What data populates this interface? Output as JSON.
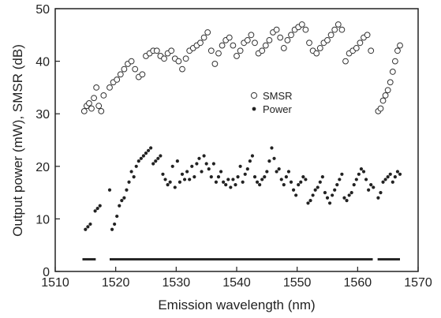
{
  "chart_data": {
    "type": "scatter",
    "xlabel": "Emission wavelength (nm)",
    "ylabel": "Output power (mW), SMSR (dB)",
    "xlim": [
      1510,
      1570
    ],
    "ylim": [
      0,
      50
    ],
    "xticks": [
      1510,
      1520,
      1530,
      1540,
      1550,
      1560,
      1570
    ],
    "yticks": [
      0,
      10,
      20,
      30,
      40,
      50
    ],
    "grid": false,
    "legend_position": "center-right",
    "series": [
      {
        "name": "SMSR",
        "marker": "open-circle",
        "x": [
          1514.8,
          1515.2,
          1515.6,
          1516.0,
          1516.4,
          1516.8,
          1517.2,
          1517.6,
          1518.0,
          1519.0,
          1519.6,
          1520.2,
          1520.8,
          1521.4,
          1522.0,
          1522.6,
          1523.2,
          1523.8,
          1524.4,
          1525.0,
          1525.6,
          1526.2,
          1526.8,
          1527.4,
          1528.0,
          1528.6,
          1529.2,
          1529.8,
          1530.4,
          1531.0,
          1531.6,
          1532.2,
          1532.8,
          1533.4,
          1534.0,
          1534.6,
          1535.2,
          1535.8,
          1536.4,
          1537.0,
          1537.6,
          1538.2,
          1538.8,
          1539.4,
          1540.0,
          1540.6,
          1541.2,
          1541.8,
          1542.4,
          1543.0,
          1543.6,
          1544.2,
          1544.8,
          1545.4,
          1546.0,
          1546.6,
          1547.2,
          1547.8,
          1548.4,
          1549.0,
          1549.6,
          1550.2,
          1550.8,
          1551.4,
          1552.0,
          1552.6,
          1553.2,
          1553.8,
          1554.4,
          1555.0,
          1555.6,
          1556.2,
          1556.8,
          1557.4,
          1558.0,
          1558.6,
          1559.2,
          1559.8,
          1560.4,
          1561.0,
          1561.6,
          1562.2,
          1563.4,
          1563.8,
          1564.2,
          1564.6,
          1565.0,
          1565.4,
          1565.8,
          1566.2,
          1566.6,
          1567.0
        ],
        "y": [
          30.5,
          31.5,
          32.0,
          31.0,
          33.0,
          35.0,
          31.5,
          30.5,
          33.5,
          35.0,
          36.0,
          36.5,
          37.5,
          38.5,
          39.5,
          40.0,
          38.5,
          37.0,
          37.5,
          41.0,
          41.5,
          42.0,
          42.0,
          41.0,
          40.5,
          41.5,
          42.0,
          40.5,
          40.0,
          38.5,
          40.5,
          42.0,
          42.5,
          43.0,
          43.5,
          44.5,
          45.5,
          42.0,
          39.5,
          41.5,
          43.0,
          44.0,
          44.5,
          43.0,
          41.0,
          42.0,
          43.5,
          44.0,
          45.0,
          43.5,
          41.5,
          42.0,
          43.0,
          44.0,
          45.5,
          46.0,
          44.5,
          42.5,
          44.0,
          45.0,
          46.0,
          46.5,
          47.0,
          46.0,
          43.5,
          42.0,
          41.5,
          42.5,
          43.5,
          44.0,
          45.0,
          46.0,
          47.0,
          46.0,
          40.0,
          41.5,
          42.0,
          42.5,
          43.5,
          44.5,
          45.0,
          42.0,
          30.5,
          31.0,
          32.5,
          33.5,
          34.5,
          36.0,
          38.0,
          40.0,
          42.0,
          43.0
        ]
      },
      {
        "name": "Power",
        "marker": "filled-dot",
        "x": [
          1515.0,
          1515.4,
          1515.8,
          1516.6,
          1517.0,
          1517.4,
          1519.0,
          1519.4,
          1519.8,
          1520.2,
          1520.6,
          1521.0,
          1521.4,
          1521.8,
          1522.2,
          1522.6,
          1523.0,
          1523.4,
          1523.8,
          1524.2,
          1524.6,
          1525.0,
          1525.4,
          1525.8,
          1526.2,
          1526.6,
          1527.0,
          1527.4,
          1527.8,
          1528.2,
          1528.6,
          1529.0,
          1529.4,
          1529.8,
          1530.2,
          1530.6,
          1531.0,
          1531.4,
          1531.8,
          1532.2,
          1532.6,
          1533.0,
          1533.4,
          1533.8,
          1534.2,
          1534.6,
          1535.0,
          1535.4,
          1535.8,
          1536.2,
          1536.6,
          1537.0,
          1537.4,
          1537.8,
          1538.2,
          1538.6,
          1539.0,
          1539.4,
          1539.8,
          1540.2,
          1540.6,
          1541.0,
          1541.4,
          1541.8,
          1542.2,
          1542.6,
          1543.0,
          1543.4,
          1543.8,
          1544.2,
          1544.6,
          1545.0,
          1545.4,
          1545.8,
          1546.2,
          1546.6,
          1547.0,
          1547.4,
          1547.8,
          1548.2,
          1548.6,
          1549.0,
          1549.4,
          1549.8,
          1550.2,
          1550.6,
          1551.0,
          1551.4,
          1551.8,
          1552.2,
          1552.6,
          1553.0,
          1553.4,
          1553.8,
          1554.2,
          1554.6,
          1555.0,
          1555.4,
          1555.8,
          1556.2,
          1556.6,
          1557.0,
          1557.4,
          1557.8,
          1558.2,
          1558.6,
          1559.0,
          1559.4,
          1559.8,
          1560.2,
          1560.6,
          1561.0,
          1561.4,
          1561.8,
          1562.2,
          1562.6,
          1563.4,
          1563.8,
          1564.2,
          1564.6,
          1565.0,
          1565.4,
          1565.8,
          1566.2,
          1566.6,
          1567.0
        ],
        "y": [
          8.0,
          8.5,
          9.0,
          11.5,
          12.0,
          12.5,
          15.5,
          8.0,
          9.0,
          10.5,
          12.5,
          13.5,
          14.0,
          15.5,
          17.0,
          19.0,
          18.0,
          20.0,
          21.0,
          21.5,
          22.0,
          22.5,
          23.0,
          23.5,
          20.5,
          21.0,
          21.5,
          22.0,
          18.5,
          17.5,
          16.5,
          17.0,
          20.0,
          16.0,
          21.0,
          17.0,
          18.5,
          17.5,
          19.0,
          17.5,
          20.0,
          18.0,
          20.5,
          21.5,
          19.0,
          22.0,
          20.5,
          19.5,
          18.0,
          20.5,
          17.0,
          18.0,
          19.0,
          17.0,
          16.5,
          17.5,
          16.0,
          17.5,
          16.5,
          18.0,
          20.0,
          17.0,
          18.5,
          19.5,
          21.0,
          22.0,
          18.0,
          17.0,
          16.5,
          17.5,
          18.0,
          19.0,
          21.0,
          23.5,
          21.5,
          19.0,
          19.5,
          17.5,
          16.5,
          18.0,
          19.0,
          17.0,
          15.5,
          14.5,
          16.5,
          17.0,
          18.0,
          17.5,
          13.0,
          13.5,
          14.5,
          15.5,
          16.0,
          17.0,
          18.0,
          15.0,
          14.0,
          13.0,
          14.5,
          15.5,
          16.5,
          17.5,
          18.5,
          14.0,
          13.5,
          14.5,
          15.0,
          16.5,
          17.5,
          18.5,
          19.5,
          19.0,
          17.5,
          15.5,
          16.5,
          16.0,
          14.0,
          15.0,
          17.0,
          17.5,
          18.0,
          18.5,
          17.0,
          18.0,
          19.0,
          18.5
        ]
      },
      {
        "name": "",
        "marker": "filled-dot",
        "segments": [
          [
            1514.5,
            1516.7
          ],
          [
            1519.0,
            1562.5
          ],
          [
            1563.3,
            1567.0
          ]
        ],
        "y": 2.3
      }
    ]
  }
}
